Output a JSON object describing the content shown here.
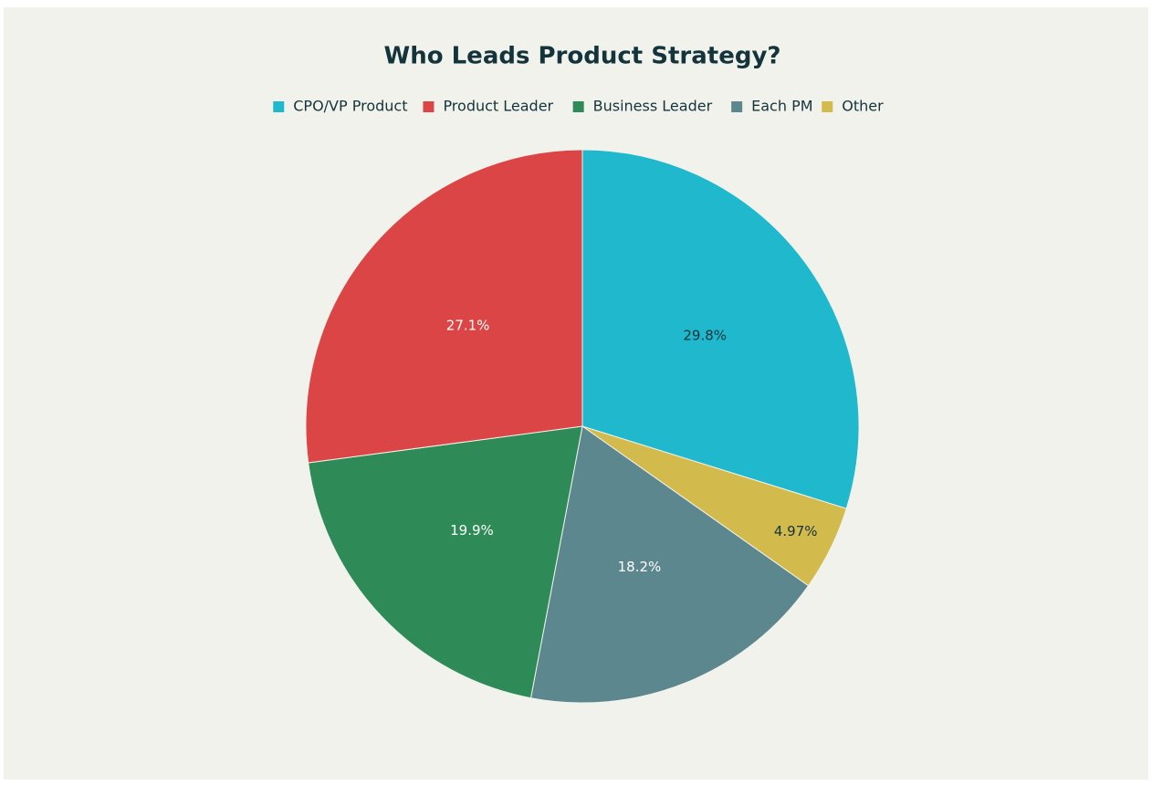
{
  "chart_data": {
    "type": "pie",
    "title": "Who Leads Product Strategy?",
    "categories": [
      "CPO/VP Product",
      "Product Leader",
      "Business Leader",
      "Each PM",
      "Other"
    ],
    "values": [
      29.8,
      27.1,
      19.9,
      18.2,
      4.97
    ],
    "value_labels": [
      "29.8%",
      "27.1%",
      "19.9%",
      "18.2%",
      "4.97%"
    ],
    "colors": [
      "#1fb8cd",
      "#db4545",
      "#2e8b57",
      "#5d878f",
      "#d2ba4c"
    ],
    "legend": "top"
  }
}
